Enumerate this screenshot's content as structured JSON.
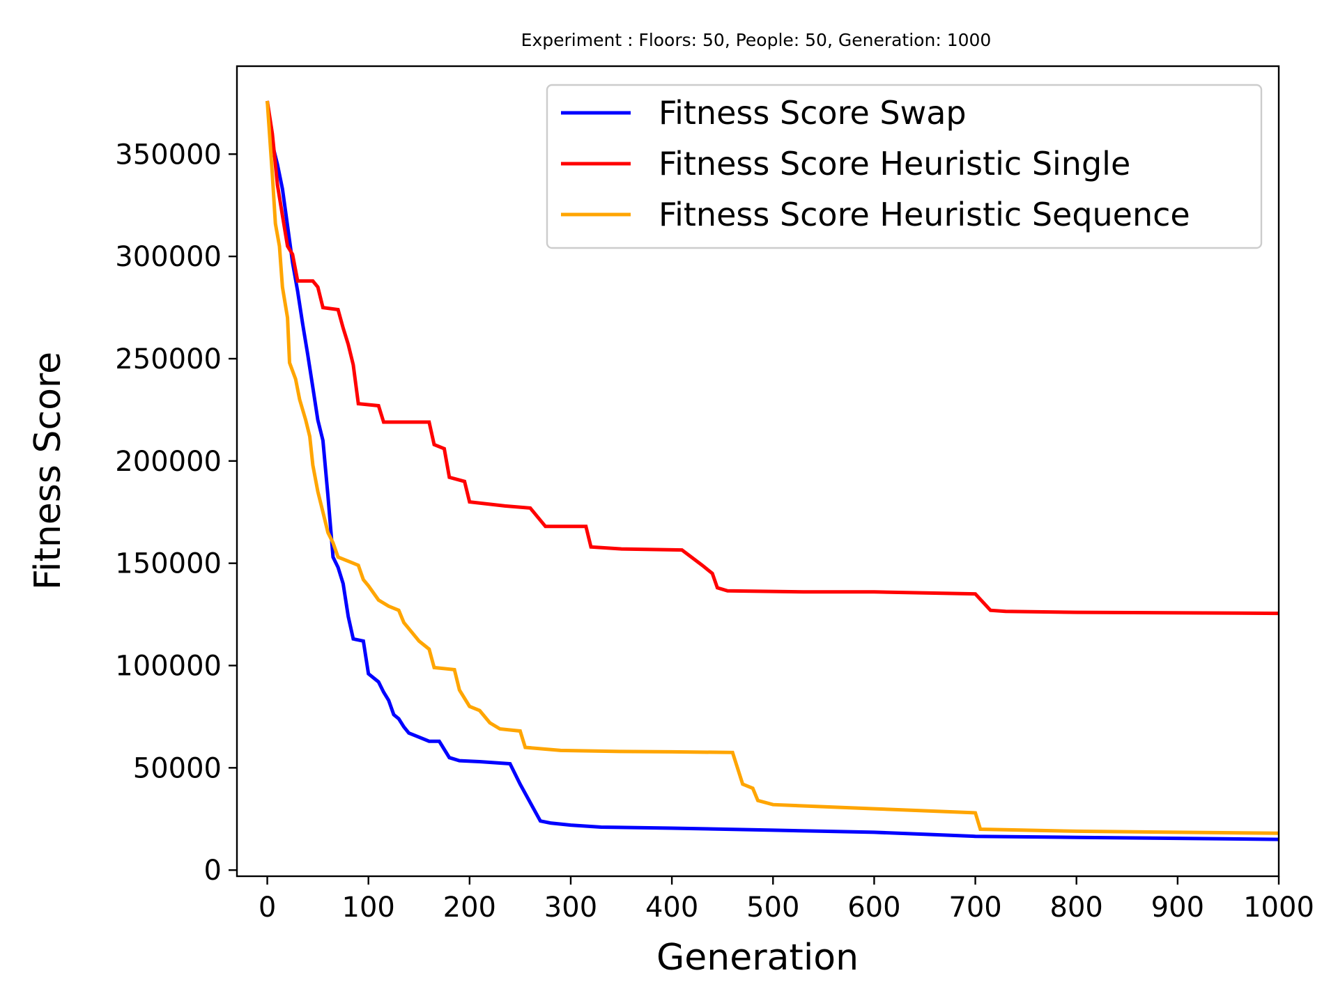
{
  "chart_data": {
    "type": "line",
    "title": "Experiment : Floors: 50, People: 50, Generation: 1000",
    "xlabel": "Generation",
    "ylabel": "Fitness Score",
    "xlim": [
      -30,
      1000
    ],
    "ylim": [
      -3000,
      393000
    ],
    "x_ticks": [
      0,
      100,
      200,
      300,
      400,
      500,
      600,
      700,
      800,
      900,
      1000
    ],
    "x_tick_labels": [
      "0",
      "100",
      "200",
      "300",
      "400",
      "500",
      "600",
      "700",
      "800",
      "900",
      "1000"
    ],
    "y_ticks": [
      0,
      50000,
      100000,
      150000,
      200000,
      250000,
      300000,
      350000
    ],
    "y_tick_labels": [
      "0",
      "50000",
      "100000",
      "150000",
      "200000",
      "250000",
      "300000",
      "350000"
    ],
    "grid": false,
    "legend_position": "top-right",
    "series": [
      {
        "name": "Fitness Score Swap",
        "color": "#0000ff",
        "points": [
          [
            0,
            376000
          ],
          [
            5,
            355000
          ],
          [
            10,
            345000
          ],
          [
            15,
            333000
          ],
          [
            20,
            315000
          ],
          [
            25,
            297000
          ],
          [
            30,
            283000
          ],
          [
            35,
            267000
          ],
          [
            40,
            252000
          ],
          [
            45,
            236000
          ],
          [
            50,
            220000
          ],
          [
            55,
            210000
          ],
          [
            60,
            183000
          ],
          [
            65,
            153000
          ],
          [
            70,
            148000
          ],
          [
            75,
            140000
          ],
          [
            80,
            124000
          ],
          [
            85,
            113000
          ],
          [
            95,
            112000
          ],
          [
            100,
            96000
          ],
          [
            110,
            92000
          ],
          [
            115,
            87000
          ],
          [
            120,
            83000
          ],
          [
            125,
            76000
          ],
          [
            130,
            74000
          ],
          [
            135,
            70000
          ],
          [
            140,
            67000
          ],
          [
            150,
            65000
          ],
          [
            160,
            63000
          ],
          [
            170,
            63000
          ],
          [
            180,
            55000
          ],
          [
            190,
            53500
          ],
          [
            210,
            53000
          ],
          [
            240,
            52000
          ],
          [
            250,
            42000
          ],
          [
            260,
            33000
          ],
          [
            270,
            24000
          ],
          [
            280,
            23000
          ],
          [
            300,
            22000
          ],
          [
            330,
            21000
          ],
          [
            400,
            20500
          ],
          [
            500,
            19500
          ],
          [
            550,
            19000
          ],
          [
            600,
            18500
          ],
          [
            650,
            17500
          ],
          [
            700,
            16500
          ],
          [
            800,
            16000
          ],
          [
            1000,
            15000
          ]
        ]
      },
      {
        "name": "Fitness Score Heuristic Single",
        "color": "#ff0000",
        "points": [
          [
            0,
            376000
          ],
          [
            5,
            360000
          ],
          [
            10,
            335000
          ],
          [
            15,
            320000
          ],
          [
            20,
            305000
          ],
          [
            25,
            301000
          ],
          [
            30,
            288000
          ],
          [
            45,
            288000
          ],
          [
            50,
            285000
          ],
          [
            55,
            275000
          ],
          [
            70,
            274000
          ],
          [
            75,
            265000
          ],
          [
            80,
            257000
          ],
          [
            85,
            247000
          ],
          [
            90,
            228000
          ],
          [
            110,
            227000
          ],
          [
            115,
            219000
          ],
          [
            160,
            219000
          ],
          [
            165,
            208000
          ],
          [
            175,
            206000
          ],
          [
            180,
            192000
          ],
          [
            195,
            190000
          ],
          [
            200,
            180000
          ],
          [
            235,
            178000
          ],
          [
            260,
            177000
          ],
          [
            275,
            168000
          ],
          [
            315,
            168000
          ],
          [
            320,
            158000
          ],
          [
            350,
            157000
          ],
          [
            410,
            156500
          ],
          [
            430,
            149000
          ],
          [
            440,
            145000
          ],
          [
            445,
            138000
          ],
          [
            455,
            136500
          ],
          [
            530,
            136000
          ],
          [
            600,
            136000
          ],
          [
            700,
            135000
          ],
          [
            715,
            127000
          ],
          [
            730,
            126500
          ],
          [
            800,
            126000
          ],
          [
            1000,
            125500
          ]
        ]
      },
      {
        "name": "Fitness Score Heuristic Sequence",
        "color": "#ffa500",
        "points": [
          [
            0,
            376000
          ],
          [
            5,
            340000
          ],
          [
            8,
            316000
          ],
          [
            12,
            305000
          ],
          [
            15,
            285000
          ],
          [
            20,
            270000
          ],
          [
            22,
            248000
          ],
          [
            28,
            240000
          ],
          [
            32,
            230000
          ],
          [
            38,
            220000
          ],
          [
            42,
            212000
          ],
          [
            45,
            198000
          ],
          [
            50,
            185000
          ],
          [
            55,
            175000
          ],
          [
            60,
            165000
          ],
          [
            65,
            160000
          ],
          [
            70,
            153000
          ],
          [
            80,
            151000
          ],
          [
            90,
            149000
          ],
          [
            95,
            142000
          ],
          [
            100,
            139000
          ],
          [
            110,
            132000
          ],
          [
            120,
            129000
          ],
          [
            130,
            127000
          ],
          [
            135,
            121000
          ],
          [
            140,
            118000
          ],
          [
            150,
            112000
          ],
          [
            160,
            108000
          ],
          [
            165,
            99000
          ],
          [
            185,
            98000
          ],
          [
            190,
            88000
          ],
          [
            200,
            80000
          ],
          [
            210,
            78000
          ],
          [
            220,
            72000
          ],
          [
            230,
            69000
          ],
          [
            240,
            68500
          ],
          [
            250,
            68000
          ],
          [
            255,
            60000
          ],
          [
            290,
            58500
          ],
          [
            350,
            58000
          ],
          [
            400,
            57800
          ],
          [
            460,
            57500
          ],
          [
            470,
            42000
          ],
          [
            480,
            40000
          ],
          [
            485,
            34000
          ],
          [
            500,
            32000
          ],
          [
            600,
            30000
          ],
          [
            700,
            28000
          ],
          [
            705,
            20000
          ],
          [
            800,
            19000
          ],
          [
            1000,
            18000
          ]
        ]
      }
    ]
  }
}
